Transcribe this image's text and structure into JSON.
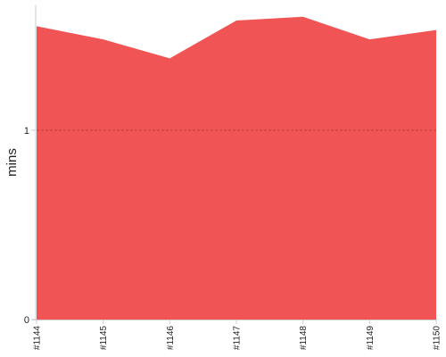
{
  "chart_data": {
    "type": "area",
    "title": "",
    "xlabel": "",
    "ylabel": "mins",
    "categories": [
      "#1144",
      "#1145",
      "#1146",
      "#1147",
      "#1148",
      "#1149",
      "#1150"
    ],
    "series": [
      {
        "values": [
          1.55,
          1.48,
          1.38,
          1.58,
          1.6,
          1.48,
          1.53
        ]
      }
    ],
    "ylim": [
      0,
      1.66
    ],
    "yticks": [
      {
        "value": 0,
        "label": "0"
      },
      {
        "value": 1,
        "label": "1"
      }
    ],
    "reference_lines": [
      {
        "value": 1,
        "style": "dashed"
      }
    ],
    "grid": false,
    "legend": "none",
    "colors": {
      "area": "#f05454",
      "reference_line": "#b83a3a",
      "axis": "#cccccc",
      "text": "#222222"
    }
  }
}
